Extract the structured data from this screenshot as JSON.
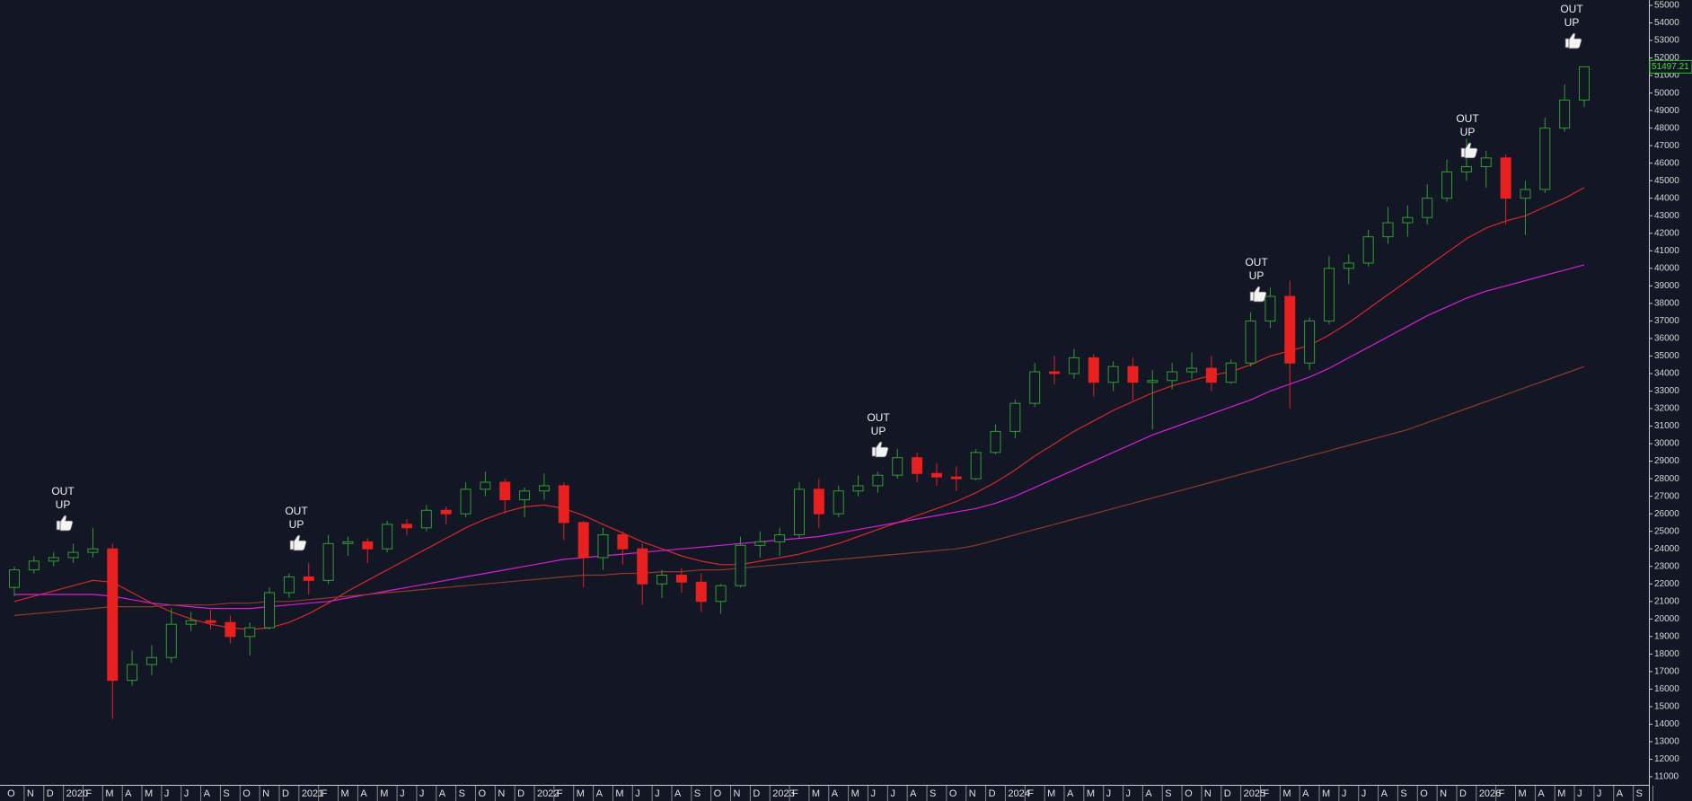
{
  "chart_data": {
    "type": "candlestick",
    "categories": [
      "O",
      "N",
      "D",
      "2020",
      "F",
      "M",
      "A",
      "M",
      "J",
      "J",
      "A",
      "S",
      "O",
      "N",
      "D",
      "2021",
      "F",
      "M",
      "A",
      "M",
      "J",
      "J",
      "A",
      "S",
      "O",
      "N",
      "D",
      "2022",
      "F",
      "M",
      "A",
      "M",
      "J",
      "J",
      "A",
      "S",
      "O",
      "N",
      "D",
      "2023",
      "F",
      "M",
      "A",
      "M",
      "J",
      "J",
      "A",
      "S",
      "O",
      "N",
      "D",
      "2024",
      "F",
      "M",
      "A",
      "M",
      "J",
      "J",
      "A",
      "S",
      "O",
      "N",
      "D",
      "2025",
      "F",
      "M",
      "A",
      "M",
      "J",
      "J",
      "A",
      "S",
      "O",
      "N",
      "D",
      "2026",
      "F",
      "M",
      "A",
      "M",
      "J",
      "J",
      "A",
      "S"
    ],
    "ohlc": {
      "open": [
        21800,
        22800,
        23300,
        23500,
        23800,
        24000,
        16500,
        17400,
        17800,
        19700,
        19900,
        19800,
        19000,
        19500,
        21500,
        22400,
        22200,
        24300,
        24400,
        24000,
        25400,
        25200,
        26200,
        26000,
        27400,
        27800,
        26800,
        27300,
        27600,
        25500,
        23500,
        24800,
        24000,
        22000,
        22500,
        22100,
        21000,
        21900,
        24200,
        24400,
        24800,
        27400,
        26000,
        27300,
        27600,
        28200,
        29200,
        28300,
        28100,
        28000,
        29500,
        30700,
        32300,
        34100,
        34000,
        34900,
        33500,
        34400,
        33500,
        33600,
        34100,
        34300,
        33500,
        34600,
        37000,
        38400,
        34600,
        37000,
        40000,
        40300,
        41800,
        42600,
        42900,
        44000,
        45500,
        45800,
        46300,
        44000,
        44500,
        48000,
        49600,
        null,
        null,
        null
      ],
      "high": [
        23000,
        23600,
        23800,
        24300,
        25200,
        24300,
        18200,
        18500,
        20600,
        20400,
        20500,
        20200,
        19800,
        21800,
        22600,
        23200,
        24800,
        24700,
        24600,
        25600,
        25700,
        26500,
        26400,
        27800,
        28400,
        28000,
        27500,
        28300,
        27800,
        25600,
        25200,
        25000,
        24300,
        22800,
        22900,
        22600,
        22000,
        24700,
        25000,
        25200,
        27800,
        28000,
        27600,
        28200,
        28400,
        29700,
        29500,
        28900,
        28700,
        29700,
        31100,
        32500,
        34600,
        35000,
        35400,
        35100,
        34700,
        34900,
        34200,
        34600,
        35200,
        35000,
        34800,
        37500,
        38900,
        39300,
        37200,
        40700,
        40800,
        42200,
        43500,
        43600,
        44800,
        46200,
        47400,
        46700,
        46500,
        45000,
        48600,
        50500,
        51500,
        null,
        null,
        null
      ],
      "low": [
        21300,
        22600,
        23000,
        23200,
        23500,
        14300,
        16200,
        16800,
        17500,
        19300,
        19400,
        18600,
        17900,
        19400,
        21200,
        21400,
        22000,
        23600,
        23200,
        23800,
        24800,
        25000,
        25400,
        25800,
        27000,
        26000,
        25800,
        26800,
        24500,
        21800,
        22800,
        23100,
        20800,
        21200,
        21500,
        20400,
        20300,
        21800,
        23500,
        23600,
        24600,
        25200,
        25800,
        27000,
        27200,
        28000,
        27800,
        27600,
        27300,
        27900,
        29400,
        30300,
        32100,
        33400,
        33700,
        32700,
        33000,
        32500,
        30800,
        33100,
        33700,
        33000,
        33400,
        34400,
        36600,
        32000,
        34200,
        36800,
        39100,
        40100,
        41400,
        41800,
        42500,
        43800,
        45000,
        44600,
        42500,
        41900,
        44300,
        47800,
        49200,
        null,
        null,
        null
      ],
      "close": [
        22800,
        23300,
        23500,
        23800,
        24000,
        16500,
        17400,
        17800,
        19700,
        19900,
        19800,
        19000,
        19500,
        21500,
        22400,
        22200,
        24300,
        24400,
        24000,
        25400,
        25200,
        26200,
        26000,
        27400,
        27800,
        26800,
        27300,
        27600,
        25500,
        23500,
        24800,
        24000,
        22000,
        22500,
        22100,
        21000,
        21900,
        24200,
        24400,
        24800,
        27400,
        26000,
        27300,
        27600,
        28200,
        29200,
        28300,
        28100,
        28000,
        29500,
        30700,
        32300,
        34100,
        34000,
        34900,
        33500,
        34400,
        33500,
        33600,
        34100,
        34300,
        33500,
        34600,
        37000,
        38400,
        34600,
        37000,
        40000,
        40300,
        41800,
        42600,
        42900,
        44000,
        45500,
        45800,
        46300,
        44000,
        44500,
        48000,
        49600,
        51497.21,
        null,
        null,
        null
      ],
      "up_color": "#2f9e2f",
      "down_color": "#e8201f"
    },
    "last_value_label": "51497.21",
    "lines": [
      {
        "color": "#d42a2a",
        "values": [
          21000,
          21300,
          21600,
          21900,
          22200,
          22100,
          21500,
          20900,
          20400,
          20000,
          19700,
          19500,
          19400,
          19500,
          19800,
          20300,
          20900,
          21600,
          22200,
          22800,
          23400,
          24000,
          24600,
          25200,
          25700,
          26100,
          26400,
          26500,
          26300,
          25900,
          25400,
          24900,
          24400,
          24000,
          23600,
          23300,
          23100,
          23100,
          23300,
          23500,
          23700,
          24000,
          24300,
          24700,
          25100,
          25500,
          25900,
          26300,
          26700,
          27200,
          27800,
          28500,
          29300,
          30000,
          30700,
          31300,
          31900,
          32400,
          32900,
          33300,
          33600,
          33900,
          34100,
          34500,
          35000,
          35300,
          35600,
          36200,
          36900,
          37700,
          38500,
          39300,
          40100,
          40900,
          41700,
          42300,
          42700,
          43000,
          43500,
          44000,
          44600,
          null,
          null,
          null
        ]
      },
      {
        "color": "#d81fd8",
        "values": [
          21400,
          21400,
          21400,
          21400,
          21400,
          21300,
          21100,
          20900,
          20800,
          20700,
          20600,
          20600,
          20600,
          20700,
          20800,
          20900,
          21000,
          21200,
          21400,
          21600,
          21800,
          22000,
          22200,
          22400,
          22600,
          22800,
          23000,
          23200,
          23400,
          23500,
          23600,
          23700,
          23800,
          23900,
          24000,
          24100,
          24200,
          24300,
          24400,
          24500,
          24600,
          24700,
          24900,
          25100,
          25300,
          25500,
          25700,
          25900,
          26100,
          26300,
          26600,
          27000,
          27500,
          28000,
          28500,
          29000,
          29500,
          30000,
          30500,
          30900,
          31300,
          31700,
          32100,
          32500,
          33000,
          33400,
          33800,
          34300,
          34900,
          35500,
          36100,
          36700,
          37300,
          37800,
          38300,
          38700,
          39000,
          39300,
          39600,
          39900,
          40200,
          null,
          null,
          null
        ]
      },
      {
        "color": "#8e3a2a",
        "values": [
          20200,
          20300,
          20400,
          20500,
          20600,
          20700,
          20700,
          20700,
          20800,
          20800,
          20800,
          20900,
          20900,
          21000,
          21000,
          21100,
          21200,
          21300,
          21400,
          21500,
          21600,
          21700,
          21800,
          21900,
          22000,
          22100,
          22200,
          22300,
          22400,
          22500,
          22500,
          22600,
          22600,
          22700,
          22700,
          22800,
          22800,
          22900,
          23000,
          23100,
          23200,
          23300,
          23400,
          23500,
          23600,
          23700,
          23800,
          23900,
          24000,
          24200,
          24500,
          24800,
          25100,
          25400,
          25700,
          26000,
          26300,
          26600,
          26900,
          27200,
          27500,
          27800,
          28100,
          28400,
          28700,
          29000,
          29300,
          29600,
          29900,
          30200,
          30500,
          30800,
          31200,
          31600,
          32000,
          32400,
          32800,
          33200,
          33600,
          34000,
          34400,
          null,
          null,
          null
        ]
      }
    ],
    "annotations": [
      [
        "OUT",
        "UP"
      ],
      [
        "OUT",
        "UP"
      ],
      [
        "OUT",
        "UP"
      ],
      [
        "OUT",
        "UP"
      ],
      [
        "OUT",
        "UP"
      ],
      [
        "OUT",
        "UP"
      ]
    ],
    "ylim": [
      11000,
      55000
    ],
    "yticks": [
      11000,
      12000,
      13000,
      14000,
      15000,
      16000,
      17000,
      18000,
      19000,
      20000,
      21000,
      22000,
      23000,
      24000,
      25000,
      26000,
      27000,
      28000,
      29000,
      30000,
      31000,
      32000,
      33000,
      34000,
      35000,
      36000,
      37000,
      38000,
      39000,
      40000,
      41000,
      42000,
      43000,
      44000,
      45000,
      46000,
      47000,
      48000,
      49000,
      50000,
      51000,
      52000,
      53000,
      54000,
      55000
    ]
  }
}
